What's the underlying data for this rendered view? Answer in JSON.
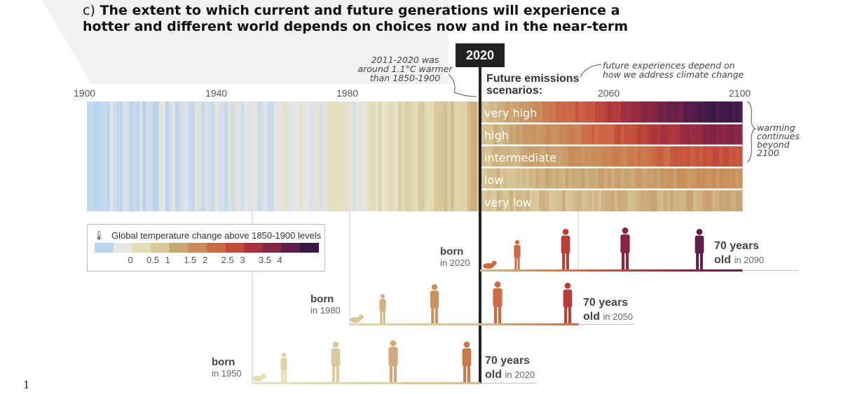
{
  "panel_label": "c)",
  "title_line1": "The extent to which current and future generations will experience a",
  "title_line2": "hotter and different world depends on choices now and in the near-term",
  "badge_2020": "2020",
  "note_warming": [
    "2011-2020 was",
    "around 1.1°C warmer",
    "than 1850-1900"
  ],
  "scenarios_header": [
    "Future emissions",
    "scenarios:"
  ],
  "note_future": [
    "future experiences depend on",
    "how we address climate change"
  ],
  "note_beyond": [
    "warming",
    "continues",
    "beyond",
    "2100"
  ],
  "page_number": "1",
  "timeline": {
    "years": [
      "1900",
      "1940",
      "1980",
      "2060",
      "2100"
    ],
    "start_year": 1900,
    "end_year": 2100,
    "split_year": 2020
  },
  "scenarios": [
    {
      "label": "very high",
      "end_temp": 4.4
    },
    {
      "label": "high",
      "end_temp": 3.6
    },
    {
      "label": "intermediate",
      "end_temp": 2.7
    },
    {
      "label": "low",
      "end_temp": 1.8
    },
    {
      "label": "very low",
      "end_temp": 1.4
    }
  ],
  "legend": {
    "title": "Global temperature change above 1850-1900 levels",
    "ticks": [
      "0",
      "0.5",
      "1",
      "1.5",
      "2",
      "2.5",
      "3",
      "3.5",
      "4"
    ],
    "colors": [
      "#b9d4ee",
      "#e6e6e6",
      "#e3dcb4",
      "#d8c89a",
      "#c9a574",
      "#c98c58",
      "#cc6a44",
      "#c24a3a",
      "#a6303e",
      "#862545",
      "#5e1f4b",
      "#3a1848"
    ]
  },
  "generations": [
    {
      "born_label": "born",
      "born_year": "in 2020",
      "age_label": "70 years",
      "old_label": "old",
      "old_year": "in 2090"
    },
    {
      "born_label": "born",
      "born_year": "in 1980",
      "age_label": "70 years",
      "old_label": "old",
      "old_year": "in 2050"
    },
    {
      "born_label": "born",
      "born_year": "in 1950",
      "age_label": "70 years",
      "old_label": "old",
      "old_year": "in 2020"
    }
  ],
  "colors": {
    "badge": "#222222",
    "cool": "#b9d4ee",
    "hot": "#3a1848"
  }
}
